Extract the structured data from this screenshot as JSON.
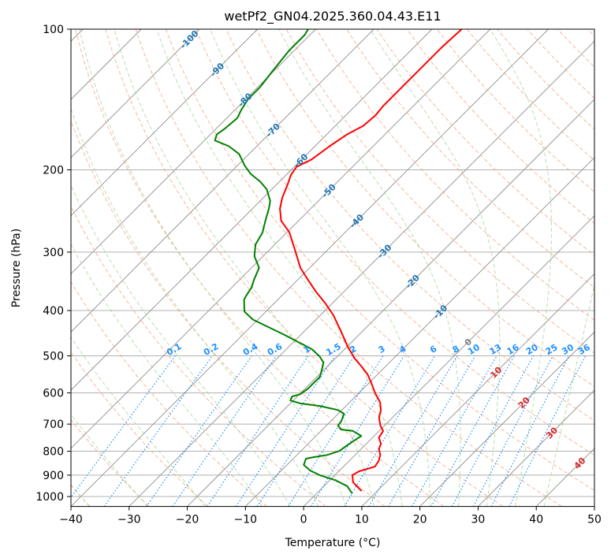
{
  "chart_data": {
    "type": "line",
    "subtype": "skew-t log-p",
    "title": "wetPf2_GN04.2025.360.04.43.E11",
    "xlabel": "Temperature (°C)",
    "ylabel": "Pressure (hPa)",
    "xlim": [
      -40,
      50
    ],
    "ylim": [
      1050,
      100
    ],
    "yscale": "log",
    "xticks": [
      "−40",
      "−30",
      "−20",
      "−10",
      "0",
      "10",
      "20",
      "30",
      "40",
      "50"
    ],
    "xtick_values": [
      -40,
      -30,
      -20,
      -10,
      0,
      10,
      20,
      30,
      40,
      50
    ],
    "yticks": [
      "100",
      "200",
      "300",
      "400",
      "500",
      "600",
      "700",
      "800",
      "900",
      "1000"
    ],
    "ytick_values": [
      100,
      200,
      300,
      400,
      500,
      600,
      700,
      800,
      900,
      1000
    ],
    "grid": true,
    "series": [
      {
        "name": "Temperature",
        "color": "#ff0000",
        "pressure": [
          973,
          933,
          900,
          883,
          863,
          840,
          814,
          792,
          771,
          748,
          724,
          705,
          678,
          653,
          628,
          611,
          597,
          569,
          548,
          527,
          507,
          478,
          443,
          409,
          386,
          364,
          344,
          324,
          300,
          272,
          257,
          242,
          229,
          216,
          205,
          197,
          190,
          178,
          168,
          161,
          153,
          146,
          135,
          123,
          109,
          100
        ],
        "temperature": [
          7.3,
          4.4,
          3.0,
          3.5,
          5.4,
          5.1,
          4.3,
          3.1,
          2.5,
          1.1,
          0.7,
          -0.7,
          -2.3,
          -3.3,
          -4.8,
          -6.3,
          -7.5,
          -9.8,
          -11.7,
          -14.1,
          -16.6,
          -19.9,
          -23.7,
          -27.8,
          -31.2,
          -34.9,
          -38.2,
          -41.6,
          -45.1,
          -49.6,
          -53.0,
          -55.3,
          -56.8,
          -58.0,
          -59.2,
          -59.6,
          -58.3,
          -57.5,
          -56.5,
          -55.2,
          -54.9,
          -55.2,
          -55.2,
          -55.2,
          -55.2,
          -54.9
        ]
      },
      {
        "name": "Dewpoint",
        "color": "#008000",
        "pressure": [
          985,
          950,
          924,
          900,
          880,
          856,
          830,
          824,
          815,
          799,
          777,
          757,
          742,
          724,
          719,
          705,
          689,
          665,
          653,
          640,
          632,
          623,
          611,
          604,
          588,
          569,
          554,
          533,
          517,
          501,
          484,
          469,
          451,
          434,
          418,
          402,
          379,
          372,
          357,
          344,
          324,
          306,
          289,
          272,
          257,
          242,
          233,
          220,
          212,
          204,
          196,
          185,
          178,
          173,
          168,
          163,
          155,
          149,
          141,
          133,
          123,
          111,
          103,
          100
        ],
        "temperature": [
          6.1,
          4.0,
          1.1,
          -2.6,
          -5.0,
          -7.1,
          -7.8,
          -6.8,
          -4.8,
          -3.4,
          -3.0,
          -2.6,
          -2.2,
          -4.5,
          -6.8,
          -8.0,
          -8.2,
          -9.0,
          -10.7,
          -14.5,
          -18.3,
          -20.5,
          -20.9,
          -19.9,
          -19.5,
          -19.5,
          -19.5,
          -20.5,
          -21.3,
          -23.1,
          -25.6,
          -28.8,
          -32.8,
          -36.9,
          -40.9,
          -43.7,
          -45.8,
          -46.1,
          -46.6,
          -47.5,
          -48.7,
          -51.5,
          -53.3,
          -54.2,
          -55.7,
          -57.2,
          -58.3,
          -60.9,
          -63.3,
          -66.3,
          -68.7,
          -71.7,
          -74.8,
          -78.2,
          -78.9,
          -78.5,
          -78.2,
          -78.9,
          -79.6,
          -79.6,
          -80.2,
          -80.9,
          -80.9,
          -81.3
        ]
      }
    ],
    "mixing_ratio_lines": {
      "color": "#1e90ff",
      "top_pressure": 500,
      "labels": [
        "0.1",
        "0.2",
        "0.4",
        "0.6",
        "1",
        "1.5",
        "2",
        "3",
        "4",
        "6",
        "8",
        "10",
        "13",
        "16",
        "20",
        "25",
        "30",
        "36"
      ],
      "values_g_per_kg": [
        0.1,
        0.2,
        0.4,
        0.6,
        1,
        1.5,
        2,
        3,
        4,
        6,
        8,
        10,
        13,
        16,
        20,
        25,
        30,
        36
      ]
    },
    "isotherm_labels": {
      "values": [
        -100,
        -90,
        -80,
        -70,
        -60,
        -50,
        -40,
        -30,
        -20,
        -10,
        0,
        10,
        20,
        30,
        40
      ],
      "labels": [
        "-100",
        "-90",
        "-80",
        "-70",
        "-60",
        "-50",
        "-40",
        "-30",
        "-20",
        "-10",
        "0",
        "10",
        "20",
        "30",
        "40"
      ],
      "cold_color": "#1f77b4",
      "zero_color": "#808080",
      "warm_color": "#d62728"
    },
    "isotherms_step": 10,
    "dry_adiabats_color": "#f4a582",
    "moist_adiabats_color": "#a6d79a",
    "isotherm_color": "#999999"
  }
}
